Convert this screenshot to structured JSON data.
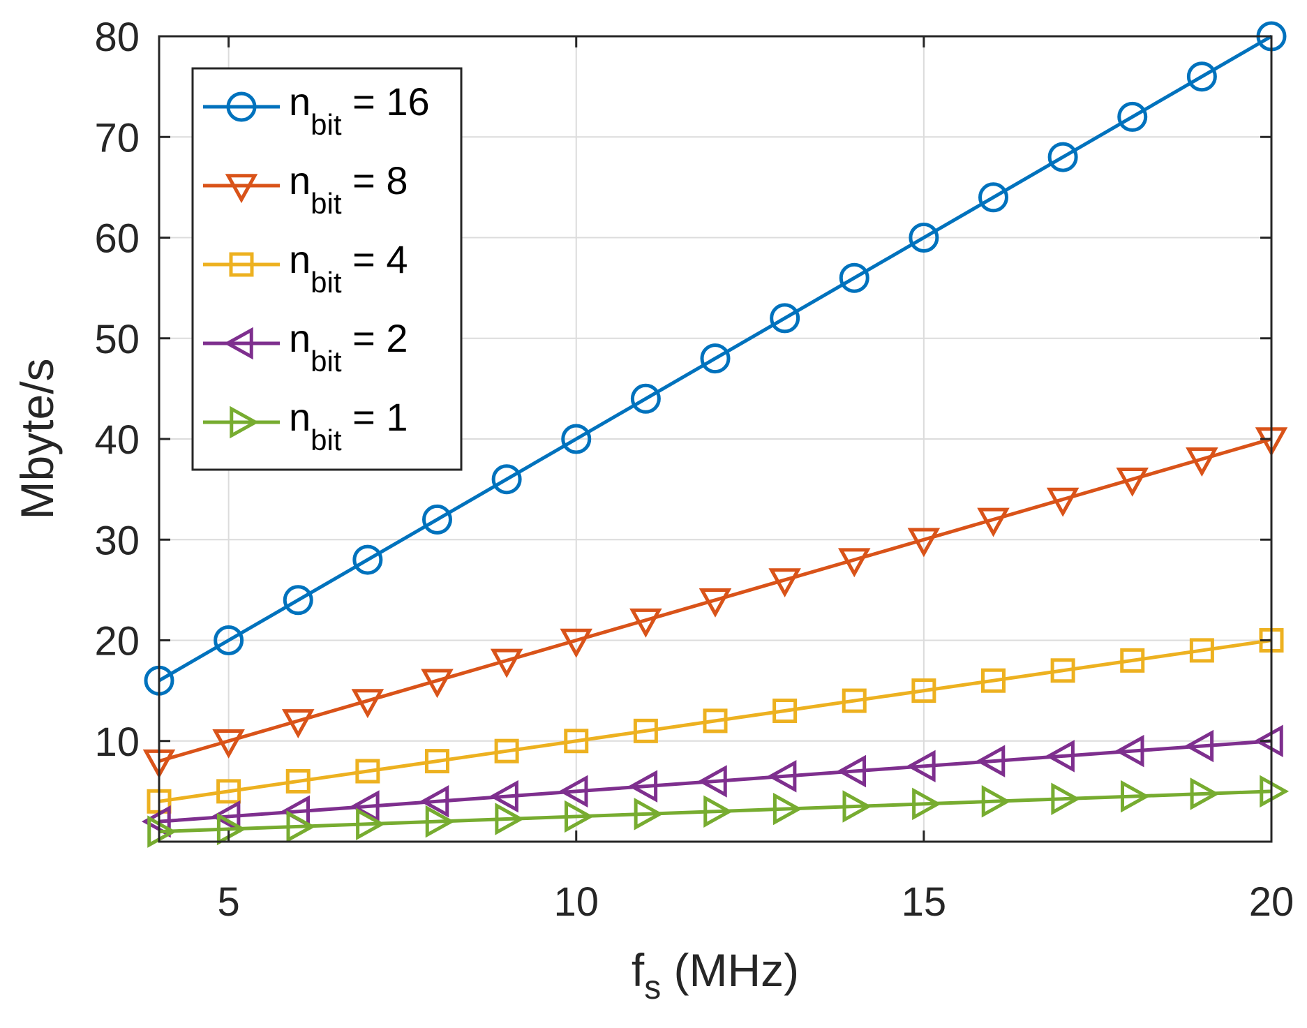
{
  "chart_data": {
    "type": "line",
    "title": "",
    "xlabel": "f",
    "xlabel_sub": "s",
    "xlabel_suffix": " (MHz)",
    "ylabel": "Mbyte/s",
    "xlim": [
      4,
      20
    ],
    "ylim": [
      0,
      80
    ],
    "xticks": [
      5,
      10,
      15,
      20
    ],
    "yticks": [
      10,
      20,
      30,
      40,
      50,
      60,
      70,
      80
    ],
    "grid": true,
    "legend_position": "top-left",
    "x": [
      4,
      5,
      6,
      7,
      8,
      9,
      10,
      11,
      12,
      13,
      14,
      15,
      16,
      17,
      18,
      19,
      20
    ],
    "series": [
      {
        "name": "n_bit = 16",
        "legend_main": "n",
        "legend_sub": "bit",
        "legend_suffix": " = 16",
        "color": "#0072BD",
        "marker": "circle",
        "values": [
          16,
          20,
          24,
          28,
          32,
          36,
          40,
          44,
          48,
          52,
          56,
          60,
          64,
          68,
          72,
          76,
          80
        ]
      },
      {
        "name": "n_bit = 8",
        "legend_main": "n",
        "legend_sub": "bit",
        "legend_suffix": " = 8",
        "color": "#D95319",
        "marker": "triangle-down",
        "values": [
          8,
          10,
          12,
          14,
          16,
          18,
          20,
          22,
          24,
          26,
          28,
          30,
          32,
          34,
          36,
          38,
          40
        ]
      },
      {
        "name": "n_bit = 4",
        "legend_main": "n",
        "legend_sub": "bit",
        "legend_suffix": " = 4",
        "color": "#EDB120",
        "marker": "square",
        "values": [
          4,
          5,
          6,
          7,
          8,
          9,
          10,
          11,
          12,
          13,
          14,
          15,
          16,
          17,
          18,
          19,
          20
        ]
      },
      {
        "name": "n_bit = 2",
        "legend_main": "n",
        "legend_sub": "bit",
        "legend_suffix": " = 2",
        "color": "#7E2F8E",
        "marker": "triangle-left",
        "values": [
          2,
          2.5,
          3,
          3.5,
          4,
          4.5,
          5,
          5.5,
          6,
          6.5,
          7,
          7.5,
          8,
          8.5,
          9,
          9.5,
          10
        ]
      },
      {
        "name": "n_bit = 1",
        "legend_main": "n",
        "legend_sub": "bit",
        "legend_suffix": " = 1",
        "color": "#77AC30",
        "marker": "triangle-right",
        "values": [
          1,
          1.25,
          1.5,
          1.75,
          2,
          2.25,
          2.5,
          2.75,
          3,
          3.25,
          3.5,
          3.75,
          4,
          4.25,
          4.5,
          4.75,
          5
        ]
      }
    ]
  }
}
